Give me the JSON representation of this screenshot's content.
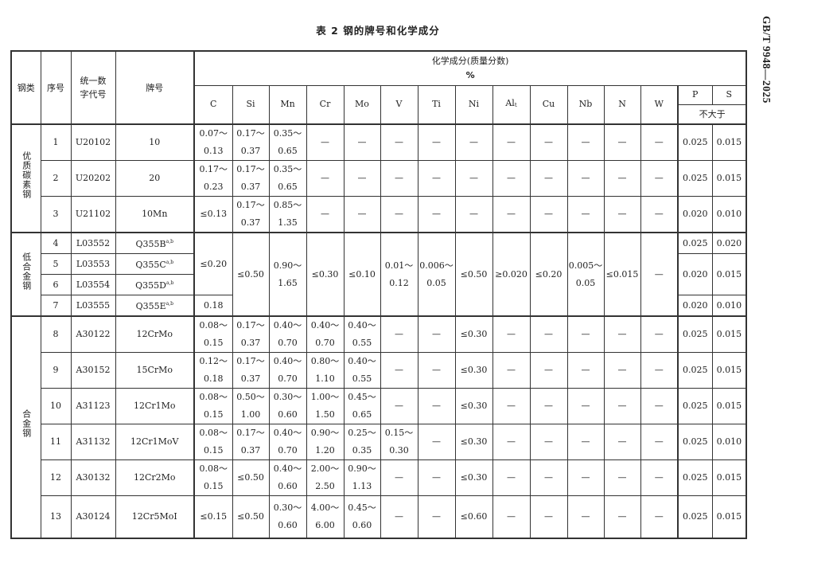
{
  "title": "表 2   钢的牌号和化学成分",
  "standard_number": "GB/T 9948—2025",
  "header": {
    "category": "钢类",
    "seq": "序号",
    "code": "统一数\n字代号",
    "grade": "牌号",
    "composition": "化学成分(质量分数)",
    "unit": "%",
    "elements": [
      "C",
      "Si",
      "Mn",
      "Cr",
      "Mo",
      "V",
      "Ti",
      "Ni",
      "Al",
      "Cu",
      "Nb",
      "N",
      "W"
    ],
    "al_subscript": "t",
    "P": "P",
    "S": "S",
    "max_note": "不大于"
  },
  "groups": [
    {
      "name": "优质碳素钢",
      "rows": [
        {
          "no": "1",
          "code": "U20102",
          "grade": "10",
          "values": [
            "0.07～\n0.13",
            "0.17～\n0.37",
            "0.35～\n0.65",
            "—",
            "—",
            "—",
            "—",
            "—",
            "—",
            "—",
            "—",
            "—",
            "—"
          ],
          "P": "0.025",
          "S": "0.015"
        },
        {
          "no": "2",
          "code": "U20202",
          "grade": "20",
          "values": [
            "0.17～\n0.23",
            "0.17～\n0.37",
            "0.35～\n0.65",
            "—",
            "—",
            "—",
            "—",
            "—",
            "—",
            "—",
            "—",
            "—",
            "—"
          ],
          "P": "0.025",
          "S": "0.015"
        },
        {
          "no": "3",
          "code": "U21102",
          "grade": "10Mn",
          "values": [
            "≤0.13",
            "0.17～\n0.37",
            "0.85～\n1.35",
            "—",
            "—",
            "—",
            "—",
            "—",
            "—",
            "—",
            "—",
            "—",
            "—"
          ],
          "P": "0.020",
          "S": "0.010"
        }
      ]
    },
    {
      "name": "低合金钢",
      "rows": [
        {
          "no": "4",
          "code": "L03552",
          "grade": "Q355B",
          "note": "a,b"
        },
        {
          "no": "5",
          "code": "L03553",
          "grade": "Q355C",
          "note": "a,b"
        },
        {
          "no": "6",
          "code": "L03554",
          "grade": "Q355D",
          "note": "a,b"
        },
        {
          "no": "7",
          "code": "L03555",
          "grade": "Q355E",
          "note": "a,b"
        }
      ],
      "C": [
        "≤0.20",
        "0.18"
      ],
      "shared_values": [
        "≤0.50",
        "0.90～\n1.65",
        "≤0.30",
        "≤0.10",
        "0.01～\n0.12",
        "0.006～\n0.05",
        "≤0.50",
        "≥0.020",
        "≤0.20",
        "0.005～\n0.05",
        "≤0.015",
        "—"
      ],
      "PS": [
        {
          "P": "0.025",
          "S": "0.020"
        },
        {
          "P": "0.020",
          "S": "0.015"
        },
        {
          "P": "0.020",
          "S": "0.010"
        }
      ]
    },
    {
      "name": "合金钢",
      "rows": [
        {
          "no": "8",
          "code": "A30122",
          "grade": "12CrMo",
          "values": [
            "0.08～\n0.15",
            "0.17～\n0.37",
            "0.40～\n0.70",
            "0.40～\n0.70",
            "0.40～\n0.55",
            "—",
            "—",
            "≤0.30",
            "—",
            "—",
            "—",
            "—",
            "—"
          ],
          "P": "0.025",
          "S": "0.015"
        },
        {
          "no": "9",
          "code": "A30152",
          "grade": "15CrMo",
          "values": [
            "0.12～\n0.18",
            "0.17～\n0.37",
            "0.40～\n0.70",
            "0.80～\n1.10",
            "0.40～\n0.55",
            "—",
            "—",
            "≤0.30",
            "—",
            "—",
            "—",
            "—",
            "—"
          ],
          "P": "0.025",
          "S": "0.015"
        },
        {
          "no": "10",
          "code": "A31123",
          "grade": "12Cr1Mo",
          "values": [
            "0.08～\n0.15",
            "0.50～\n1.00",
            "0.30～\n0.60",
            "1.00～\n1.50",
            "0.45～\n0.65",
            "—",
            "—",
            "≤0.30",
            "—",
            "—",
            "—",
            "—",
            "—"
          ],
          "P": "0.025",
          "S": "0.015"
        },
        {
          "no": "11",
          "code": "A31132",
          "grade": "12Cr1MoV",
          "values": [
            "0.08～\n0.15",
            "0.17～\n0.37",
            "0.40～\n0.70",
            "0.90～\n1.20",
            "0.25～\n0.35",
            "0.15～\n0.30",
            "—",
            "≤0.30",
            "—",
            "—",
            "—",
            "—",
            "—"
          ],
          "P": "0.025",
          "S": "0.010"
        },
        {
          "no": "12",
          "code": "A30132",
          "grade": "12Cr2Mo",
          "values": [
            "0.08～\n0.15",
            "≤0.50",
            "0.40～\n0.60",
            "2.00～\n2.50",
            "0.90～\n1.13",
            "—",
            "—",
            "≤0.30",
            "—",
            "—",
            "—",
            "—",
            "—"
          ],
          "P": "0.025",
          "S": "0.015"
        },
        {
          "no": "13",
          "code": "A30124",
          "grade": "12Cr5MoI",
          "values": [
            "≤0.15",
            "≤0.50",
            "0.30～\n0.60",
            "4.00～\n6.00",
            "0.45～\n0.60",
            "—",
            "—",
            "≤0.60",
            "—",
            "—",
            "—",
            "—",
            "—"
          ],
          "P": "0.025",
          "S": "0.015"
        }
      ]
    }
  ]
}
